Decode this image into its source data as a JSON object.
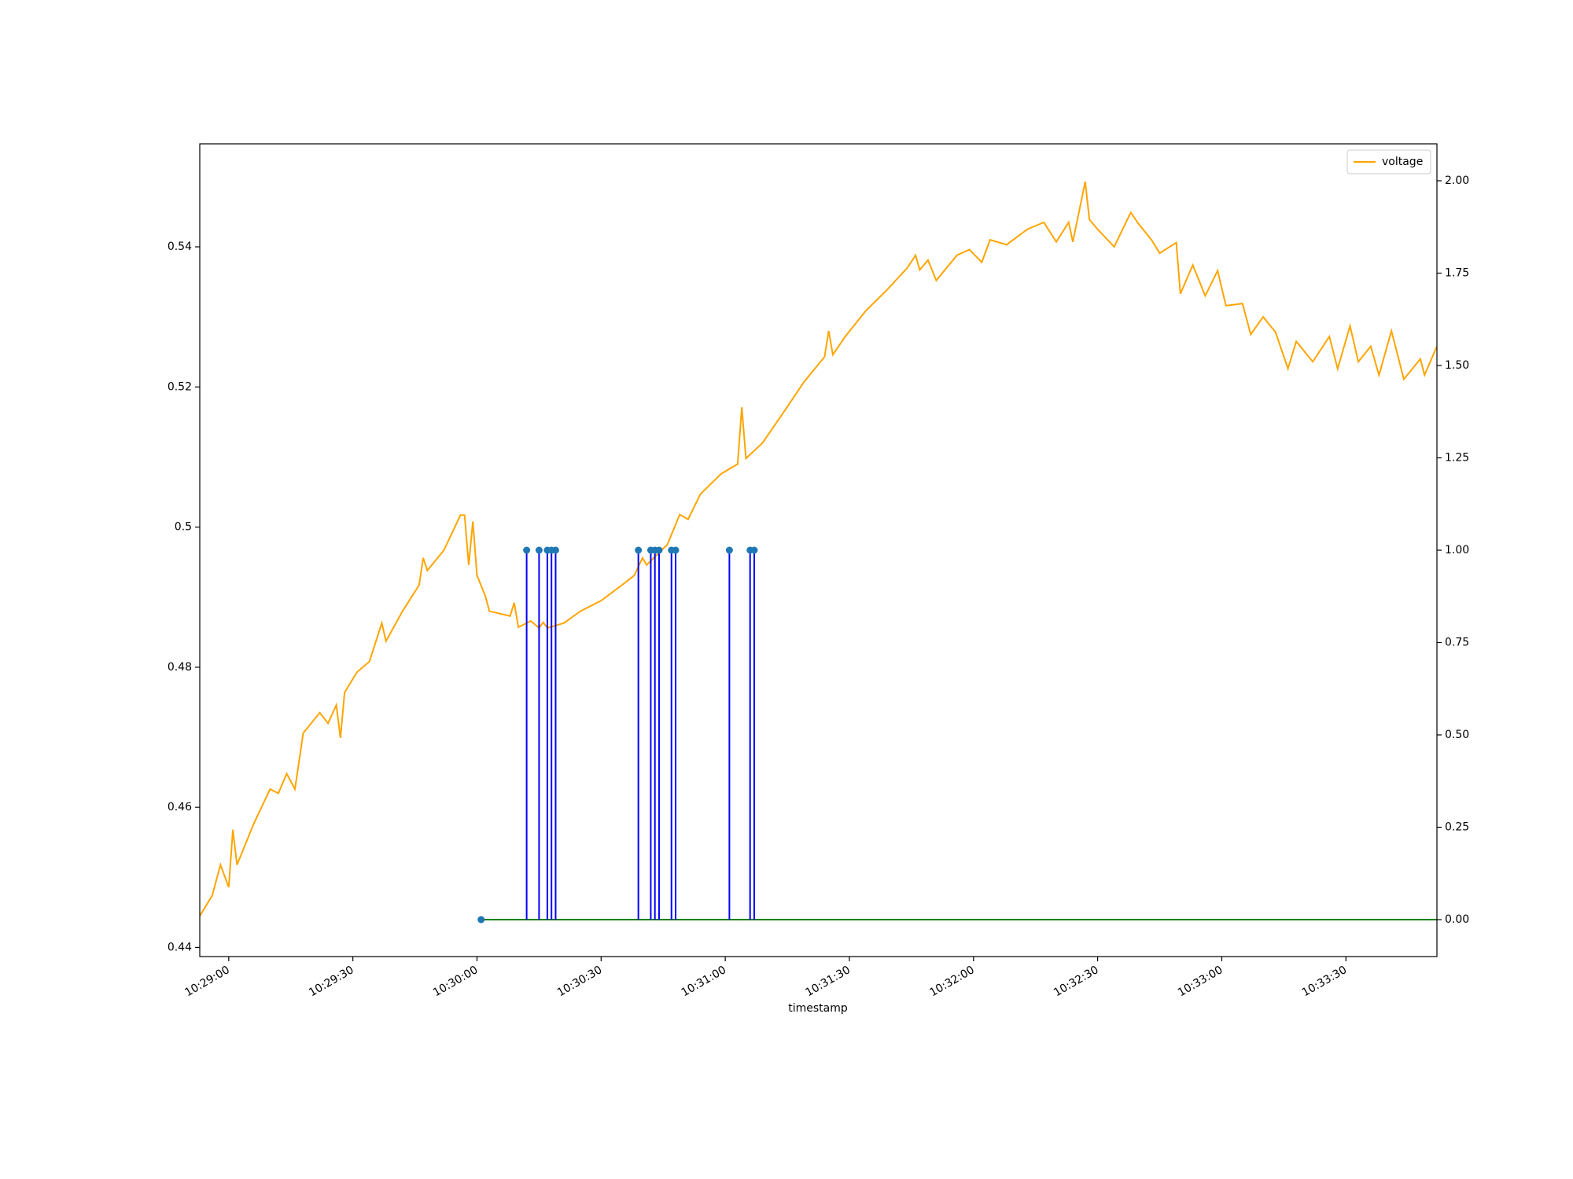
{
  "chart_data": {
    "type": "line",
    "x_label": "timestamp",
    "xlim": [
      "10:28:53",
      "10:33:52"
    ],
    "xticks": [
      "10:29:00",
      "10:29:30",
      "10:30:00",
      "10:30:30",
      "10:31:00",
      "10:31:30",
      "10:32:00",
      "10:32:30",
      "10:33:00",
      "10:33:30"
    ],
    "ylim": [
      0.4387,
      0.5547
    ],
    "yticks": [
      0.44,
      0.46,
      0.48,
      0.5,
      0.52,
      0.54
    ],
    "y2lim": [
      -0.1,
      2.1
    ],
    "y2ticks": [
      {
        "value": 0,
        "label": "0.00"
      },
      {
        "value": 0.25,
        "label": "0.25"
      },
      {
        "value": 0.5,
        "label": "0.50"
      },
      {
        "value": 0.75,
        "label": "0.75"
      },
      {
        "value": 1,
        "label": "1.00"
      },
      {
        "value": 1.25,
        "label": "1.25"
      },
      {
        "value": 1.5,
        "label": "1.50"
      },
      {
        "value": 1.75,
        "label": "1.75"
      },
      {
        "value": 2,
        "label": "2.00"
      }
    ],
    "legend": "upper right",
    "series": [
      {
        "name": "voltage",
        "color": "#ffa500",
        "x": [
          "10:28:53",
          "10:28:56",
          "10:28:58",
          "10:29:00",
          "10:29:01",
          "10:29:02",
          "10:29:06",
          "10:29:10",
          "10:29:12",
          "10:29:14",
          "10:29:16",
          "10:29:18",
          "10:29:22",
          "10:29:24",
          "10:29:26",
          "10:29:27",
          "10:29:28",
          "10:29:31",
          "10:29:34",
          "10:29:37",
          "10:29:38",
          "10:29:42",
          "10:29:46",
          "10:29:47",
          "10:29:48",
          "10:29:52",
          "10:29:56",
          "10:29:57",
          "10:29:58",
          "10:29:59",
          "10:30:00",
          "10:30:02",
          "10:30:03",
          "10:30:08",
          "10:30:09",
          "10:30:10",
          "10:30:13",
          "10:30:15",
          "10:30:16",
          "10:30:17",
          "10:30:21",
          "10:30:25",
          "10:30:30",
          "10:30:35",
          "10:30:38",
          "10:30:40",
          "10:30:41",
          "10:30:46",
          "10:30:49",
          "10:30:51",
          "10:30:54",
          "10:30:59",
          "10:31:03",
          "10:31:04",
          "10:31:05",
          "10:31:09",
          "10:31:14",
          "10:31:19",
          "10:31:24",
          "10:31:25",
          "10:31:26",
          "10:31:29",
          "10:31:34",
          "10:31:39",
          "10:31:44",
          "10:31:46",
          "10:31:47",
          "10:31:49",
          "10:31:51",
          "10:31:56",
          "10:31:59",
          "10:32:02",
          "10:32:04",
          "10:32:08",
          "10:32:13",
          "10:32:17",
          "10:32:20",
          "10:32:23",
          "10:32:24",
          "10:32:27",
          "10:32:28",
          "10:32:30",
          "10:32:34",
          "10:32:38",
          "10:32:40",
          "10:32:43",
          "10:32:45",
          "10:32:49",
          "10:32:50",
          "10:32:53",
          "10:32:56",
          "10:32:59",
          "10:33:01",
          "10:33:05",
          "10:33:07",
          "10:33:10",
          "10:33:13",
          "10:33:16",
          "10:33:18",
          "10:33:22",
          "10:33:26",
          "10:33:28",
          "10:33:31",
          "10:33:33",
          "10:33:36",
          "10:33:38",
          "10:33:41",
          "10:33:44",
          "10:33:48",
          "10:33:49",
          "10:33:52"
        ],
        "values": [
          0.4445,
          0.4474,
          0.4518,
          0.4486,
          0.4568,
          0.4518,
          0.4576,
          0.4626,
          0.462,
          0.4648,
          0.4626,
          0.4706,
          0.4735,
          0.472,
          0.4746,
          0.4699,
          0.4764,
          0.4793,
          0.4808,
          0.4863,
          0.4837,
          0.488,
          0.4917,
          0.4956,
          0.4938,
          0.4967,
          0.5017,
          0.5017,
          0.4946,
          0.5008,
          0.4931,
          0.4902,
          0.488,
          0.4873,
          0.4892,
          0.4857,
          0.4866,
          0.4856,
          0.4864,
          0.4856,
          0.4863,
          0.488,
          0.4895,
          0.4917,
          0.4931,
          0.4956,
          0.4946,
          0.4975,
          0.5018,
          0.5011,
          0.5047,
          0.5076,
          0.509,
          0.5171,
          0.5098,
          0.512,
          0.5163,
          0.5207,
          0.5243,
          0.528,
          0.5246,
          0.5272,
          0.5309,
          0.5338,
          0.537,
          0.5388,
          0.5367,
          0.5381,
          0.5352,
          0.5388,
          0.5396,
          0.5378,
          0.541,
          0.5403,
          0.5425,
          0.5435,
          0.5407,
          0.5435,
          0.5407,
          0.5493,
          0.5439,
          0.5425,
          0.54,
          0.5449,
          0.5432,
          0.541,
          0.5391,
          0.5406,
          0.5333,
          0.5374,
          0.533,
          0.5366,
          0.5316,
          0.5319,
          0.5275,
          0.53,
          0.5278,
          0.5226,
          0.5265,
          0.5236,
          0.5272,
          0.5226,
          0.5287,
          0.5236,
          0.5258,
          0.5217,
          0.528,
          0.5211,
          0.524,
          0.5217,
          0.5258
        ]
      },
      {
        "type": "stem",
        "axis": "y2",
        "color": "#0000ff",
        "marker_color": "#1f77b4",
        "baseline_color": "#008000",
        "x": [
          "10:30:01",
          "10:30:12",
          "10:30:15",
          "10:30:17",
          "10:30:18",
          "10:30:19",
          "10:30:39",
          "10:30:42",
          "10:30:43",
          "10:30:44",
          "10:30:47",
          "10:30:48",
          "10:31:01",
          "10:31:06",
          "10:31:07"
        ],
        "values": [
          0,
          1,
          1,
          1,
          1,
          1,
          1,
          1,
          1,
          1,
          1,
          1,
          1,
          1,
          1
        ]
      }
    ]
  }
}
